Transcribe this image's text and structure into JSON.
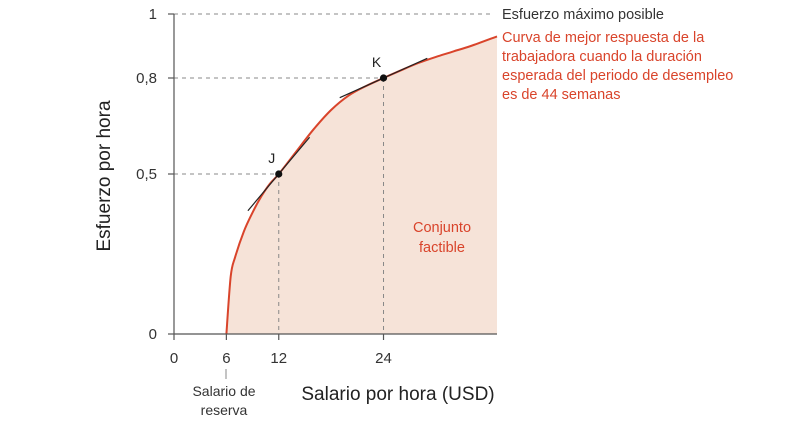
{
  "chart_data": {
    "type": "line",
    "xlabel": "Salario por hora (USD)",
    "ylabel": "Esfuerzo por hora",
    "x_ticks": [
      {
        "value": 0,
        "label": "0"
      },
      {
        "value": 6,
        "label": "6"
      },
      {
        "value": 12,
        "label": "12"
      },
      {
        "value": 24,
        "label": "24"
      }
    ],
    "y_ticks": [
      {
        "value": 0,
        "label": "0"
      },
      {
        "value": 0.5,
        "label": "0,5"
      },
      {
        "value": 0.8,
        "label": "0,8"
      },
      {
        "value": 1,
        "label": "1"
      }
    ],
    "xlim": [
      0,
      37
    ],
    "ylim": [
      0,
      1
    ],
    "grid": false,
    "series": [
      {
        "name": "Curva de mejor respuesta de la trabajadora cuando la duración esperada del periodo de desempleo es de 44 semanas",
        "color": "#d9442b",
        "x": [
          6,
          6.5,
          7,
          8,
          9,
          10,
          11,
          12,
          14,
          16,
          18,
          20,
          22,
          24,
          26,
          28,
          30,
          32,
          34,
          37
        ],
        "y": [
          0,
          0.18,
          0.24,
          0.32,
          0.38,
          0.43,
          0.47,
          0.5,
          0.57,
          0.64,
          0.7,
          0.745,
          0.775,
          0.8,
          0.824,
          0.847,
          0.866,
          0.883,
          0.9,
          0.93
        ]
      }
    ],
    "points": [
      {
        "label": "J",
        "x": 12,
        "y": 0.5
      },
      {
        "label": "K",
        "x": 24,
        "y": 0.8
      }
    ],
    "max_effort_label": "Esfuerzo máximo posible",
    "curve_label_lines": [
      "Curva de mejor respuesta de la",
      "trabajadora cuando la duración",
      "esperada del periodo de desempleo",
      "es de 44 semanas"
    ],
    "feasible_label_lines": [
      "Conjunto",
      "factible"
    ],
    "reservation_label_lines": [
      "Salario de",
      "reserva"
    ],
    "colors": {
      "curve": "#d9442b",
      "fill": "#f6e3d8",
      "axis": "#555555",
      "guide": "#888888"
    }
  }
}
